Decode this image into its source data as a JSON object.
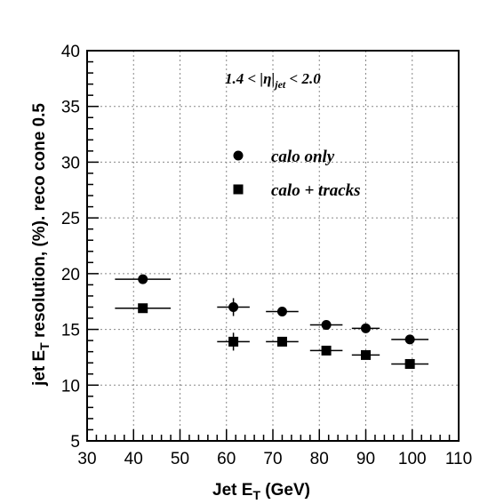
{
  "chart_data": {
    "type": "scatter",
    "xlabel": "Jet E",
    "xlabel_sub": "T",
    "xlabel_unit": " (GeV)",
    "ylabel": "jet E",
    "ylabel_sub": "T",
    "ylabel_rest": " resolution, (%). reco cone 0.5",
    "xlim": [
      30,
      110
    ],
    "ylim": [
      5,
      40
    ],
    "x_ticks": [
      30,
      40,
      50,
      60,
      70,
      80,
      90,
      100,
      110
    ],
    "y_ticks": [
      5,
      10,
      15,
      20,
      25,
      30,
      35,
      40
    ],
    "grid": true,
    "legend_position": "top-center",
    "annotation": {
      "pre": "1.4 < |η|",
      "sub": "jet",
      "post": " < 2.0"
    },
    "series": [
      {
        "name": "calo only",
        "marker": "circle",
        "points": [
          {
            "x": 42,
            "y": 19.5,
            "xerr": 6,
            "yerr": 0.3
          },
          {
            "x": 61.5,
            "y": 17.0,
            "xerr": 3.5,
            "yerr": 0.8
          },
          {
            "x": 72,
            "y": 16.6,
            "xerr": 3.5,
            "yerr": 0.3
          },
          {
            "x": 81.5,
            "y": 15.4,
            "xerr": 3.5,
            "yerr": 0.3
          },
          {
            "x": 90,
            "y": 15.1,
            "xerr": 3.0,
            "yerr": 0.3
          },
          {
            "x": 99.5,
            "y": 14.1,
            "xerr": 4.0,
            "yerr": 0.3
          }
        ]
      },
      {
        "name": "calo + tracks",
        "marker": "square",
        "points": [
          {
            "x": 42,
            "y": 16.9,
            "xerr": 6,
            "yerr": 0.3
          },
          {
            "x": 61.5,
            "y": 13.9,
            "xerr": 3.5,
            "yerr": 0.8
          },
          {
            "x": 72,
            "y": 13.9,
            "xerr": 3.5,
            "yerr": 0.3
          },
          {
            "x": 81.5,
            "y": 13.1,
            "xerr": 3.5,
            "yerr": 0.3
          },
          {
            "x": 90,
            "y": 12.7,
            "xerr": 3.0,
            "yerr": 0.3
          },
          {
            "x": 99.5,
            "y": 11.9,
            "xerr": 4.0,
            "yerr": 0.3
          }
        ]
      }
    ]
  }
}
